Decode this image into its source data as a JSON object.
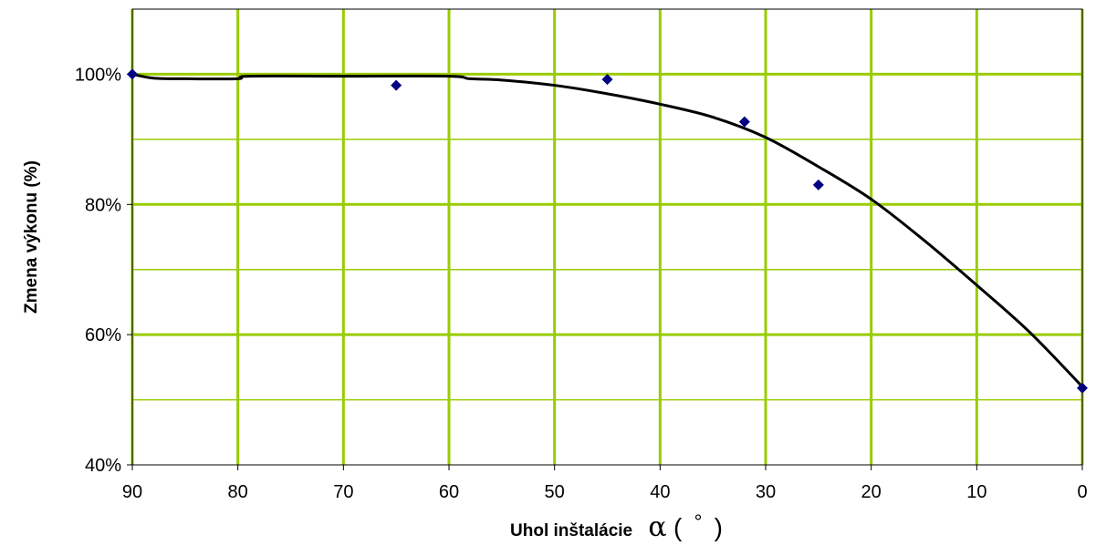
{
  "chart_data": {
    "type": "scatter",
    "xlabel": "Uhol inštalácie",
    "xlabel_symbol": "α",
    "xlabel_open": "(",
    "xlabel_unit": "°",
    "xlabel_close": ")",
    "ylabel": "Zmena výkonu (%)",
    "x_reversed": true,
    "xlim": [
      0,
      90
    ],
    "ylim": [
      40,
      110
    ],
    "x_ticks": [
      90,
      80,
      70,
      60,
      50,
      40,
      30,
      20,
      10,
      0
    ],
    "x_tick_labels": [
      "90",
      "80",
      "70",
      "60",
      "50",
      "40",
      "30",
      "20",
      "10",
      "0"
    ],
    "y_ticks": [
      40,
      60,
      80,
      100
    ],
    "y_tick_labels": [
      "40%",
      "60%",
      "80%",
      "100%"
    ],
    "grid": true,
    "legend": "none",
    "colors": {
      "grid": "#99cc00",
      "points": "#000080",
      "trend": "#000000"
    },
    "series": [
      {
        "kind": "scatter",
        "x": [
          90,
          65,
          45,
          32,
          25,
          0
        ],
        "y": [
          100,
          98.3,
          99.2,
          92.7,
          83,
          51.8
        ]
      },
      {
        "kind": "trendline",
        "x": [
          90,
          88,
          85,
          80,
          79,
          70,
          60,
          58,
          55,
          50,
          45,
          40,
          35,
          30,
          25,
          20,
          15,
          10,
          5,
          0
        ],
        "y": [
          100,
          99.4,
          99.3,
          99.3,
          99.7,
          99.7,
          99.7,
          99.3,
          99.1,
          98.3,
          97.0,
          95.4,
          93.4,
          90.3,
          85.8,
          80.8,
          74.5,
          67.6,
          60.4,
          52.0
        ]
      }
    ]
  }
}
